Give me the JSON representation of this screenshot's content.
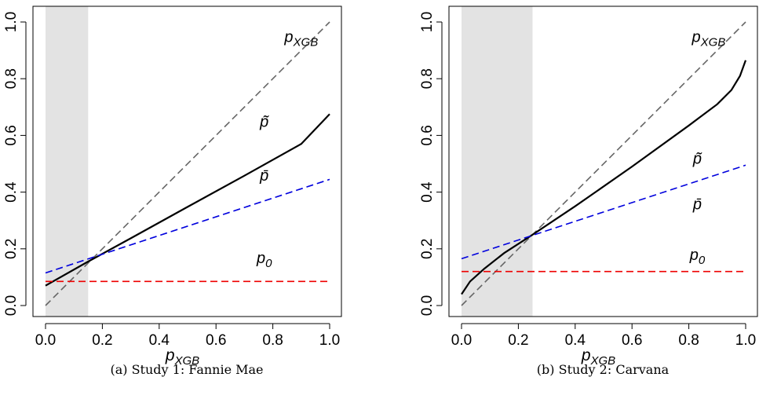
{
  "chart_data": [
    {
      "type": "line",
      "caption": "(a) Study 1: Fannie Mae",
      "xlabel": {
        "main": "p",
        "sub": "XGB"
      },
      "xlim": [
        0,
        1
      ],
      "ylim": [
        0,
        1
      ],
      "xticks": [
        "0.0",
        "0.2",
        "0.4",
        "0.6",
        "0.8",
        "1.0"
      ],
      "yticks": [
        "0.0",
        "0.2",
        "0.4",
        "0.6",
        "0.8",
        "1.0"
      ],
      "shaded_region": [
        0,
        0.15
      ],
      "series": [
        {
          "name_main": "p",
          "name_sub": "XGB",
          "color": "#666666",
          "dash": "dashed",
          "points": [
            [
              0.0,
              0.0
            ],
            [
              1.0,
              1.0
            ]
          ]
        },
        {
          "name_main": "p̃",
          "name_sub": "",
          "color": "#000000",
          "dash": "solid",
          "points": [
            [
              0.0,
              0.07
            ],
            [
              0.15,
              0.155
            ],
            [
              0.3,
              0.237
            ],
            [
              0.5,
              0.348
            ],
            [
              0.7,
              0.458
            ],
            [
              0.9,
              0.57
            ],
            [
              1.0,
              0.675
            ]
          ]
        },
        {
          "name_main": "p̄",
          "name_sub": "",
          "color": "#0000dd",
          "dash": "dashed",
          "points": [
            [
              0.0,
              0.115
            ],
            [
              1.0,
              0.445
            ]
          ]
        },
        {
          "name_main": "p",
          "name_sub": "0",
          "color": "#ee0000",
          "dash": "dashed",
          "points": [
            [
              0.0,
              0.085
            ],
            [
              1.0,
              0.085
            ]
          ]
        }
      ],
      "annotations": [
        {
          "series": 0,
          "x": 0.9,
          "y": 0.93
        },
        {
          "series": 1,
          "x": 0.77,
          "y": 0.63
        },
        {
          "series": 2,
          "x": 0.77,
          "y": 0.44
        },
        {
          "series": 3,
          "x": 0.77,
          "y": 0.15
        }
      ]
    },
    {
      "type": "line",
      "caption": "(b) Study 2: Carvana",
      "xlabel": {
        "main": "p",
        "sub": "XGB"
      },
      "xlim": [
        0,
        1
      ],
      "ylim": [
        0,
        1
      ],
      "xticks": [
        "0.0",
        "0.2",
        "0.4",
        "0.6",
        "0.8",
        "1.0"
      ],
      "yticks": [
        "0.0",
        "0.2",
        "0.4",
        "0.6",
        "0.8",
        "1.0"
      ],
      "shaded_region": [
        0,
        0.25
      ],
      "series": [
        {
          "name_main": "p",
          "name_sub": "XGB",
          "color": "#666666",
          "dash": "dashed",
          "points": [
            [
              0.0,
              0.0
            ],
            [
              1.0,
              1.0
            ]
          ]
        },
        {
          "name_main": "p̃",
          "name_sub": "",
          "color": "#000000",
          "dash": "solid",
          "points": [
            [
              0.0,
              0.04
            ],
            [
              0.03,
              0.085
            ],
            [
              0.08,
              0.13
            ],
            [
              0.15,
              0.185
            ],
            [
              0.25,
              0.25
            ],
            [
              0.4,
              0.35
            ],
            [
              0.6,
              0.49
            ],
            [
              0.8,
              0.635
            ],
            [
              0.9,
              0.71
            ],
            [
              0.95,
              0.76
            ],
            [
              0.98,
              0.81
            ],
            [
              1.0,
              0.865
            ]
          ]
        },
        {
          "name_main": "p̄",
          "name_sub": "",
          "color": "#0000dd",
          "dash": "dashed",
          "points": [
            [
              0.0,
              0.165
            ],
            [
              1.0,
              0.495
            ]
          ]
        },
        {
          "name_main": "p",
          "name_sub": "0",
          "color": "#ee0000",
          "dash": "dashed",
          "points": [
            [
              0.0,
              0.12
            ],
            [
              1.0,
              0.12
            ]
          ]
        }
      ],
      "annotations": [
        {
          "series": 0,
          "x": 0.87,
          "y": 0.93
        },
        {
          "series": 1,
          "x": 0.83,
          "y": 0.5
        },
        {
          "series": 2,
          "x": 0.83,
          "y": 0.34
        },
        {
          "series": 3,
          "x": 0.83,
          "y": 0.16
        }
      ]
    }
  ]
}
